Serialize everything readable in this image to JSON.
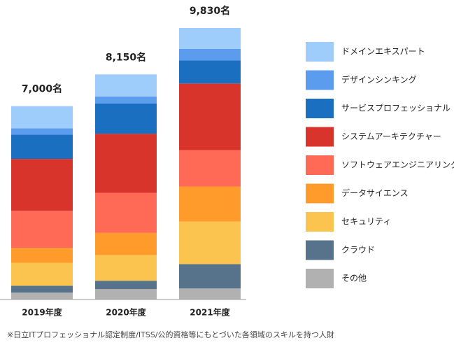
{
  "chart_data": {
    "type": "stacked-bar",
    "categories": [
      "2019年度",
      "2020年度",
      "2021年度"
    ],
    "totals": [
      7000,
      8150,
      9830
    ],
    "total_labels": [
      "7,000名",
      "8,150名",
      "9,830名"
    ],
    "series": [
      {
        "name": "その他",
        "color": "#b1b1b1",
        "values": [
          250,
          380,
          400
        ]
      },
      {
        "name": "クラウド",
        "color": "#57728b",
        "values": [
          250,
          300,
          880
        ]
      },
      {
        "name": "セキュリティ",
        "color": "#fbc44e",
        "values": [
          830,
          930,
          1540
        ]
      },
      {
        "name": "データサイエンス",
        "color": "#ff9b2b",
        "values": [
          540,
          800,
          1270
        ]
      },
      {
        "name": "ソフトウェアエンジニアリング",
        "color": "#ff6a57",
        "values": [
          1340,
          1450,
          1320
        ]
      },
      {
        "name": "システムアーキテクチャー",
        "color": "#d8342c",
        "values": [
          1880,
          2140,
          2410
        ]
      },
      {
        "name": "サービスプロフェッショナル",
        "color": "#1a6fc1",
        "values": [
          880,
          1100,
          840
        ]
      },
      {
        "name": "デザインシンキング",
        "color": "#5b9cef",
        "values": [
          230,
          250,
          410
        ]
      },
      {
        "name": "ドメインエキスパート",
        "color": "#9fcdfb",
        "values": [
          800,
          800,
          760
        ]
      }
    ],
    "note": "※日立ITプロフェッショナル認定制度/ITSS/公的資格等にもとづいた各領域のスキルを持つ人財"
  }
}
